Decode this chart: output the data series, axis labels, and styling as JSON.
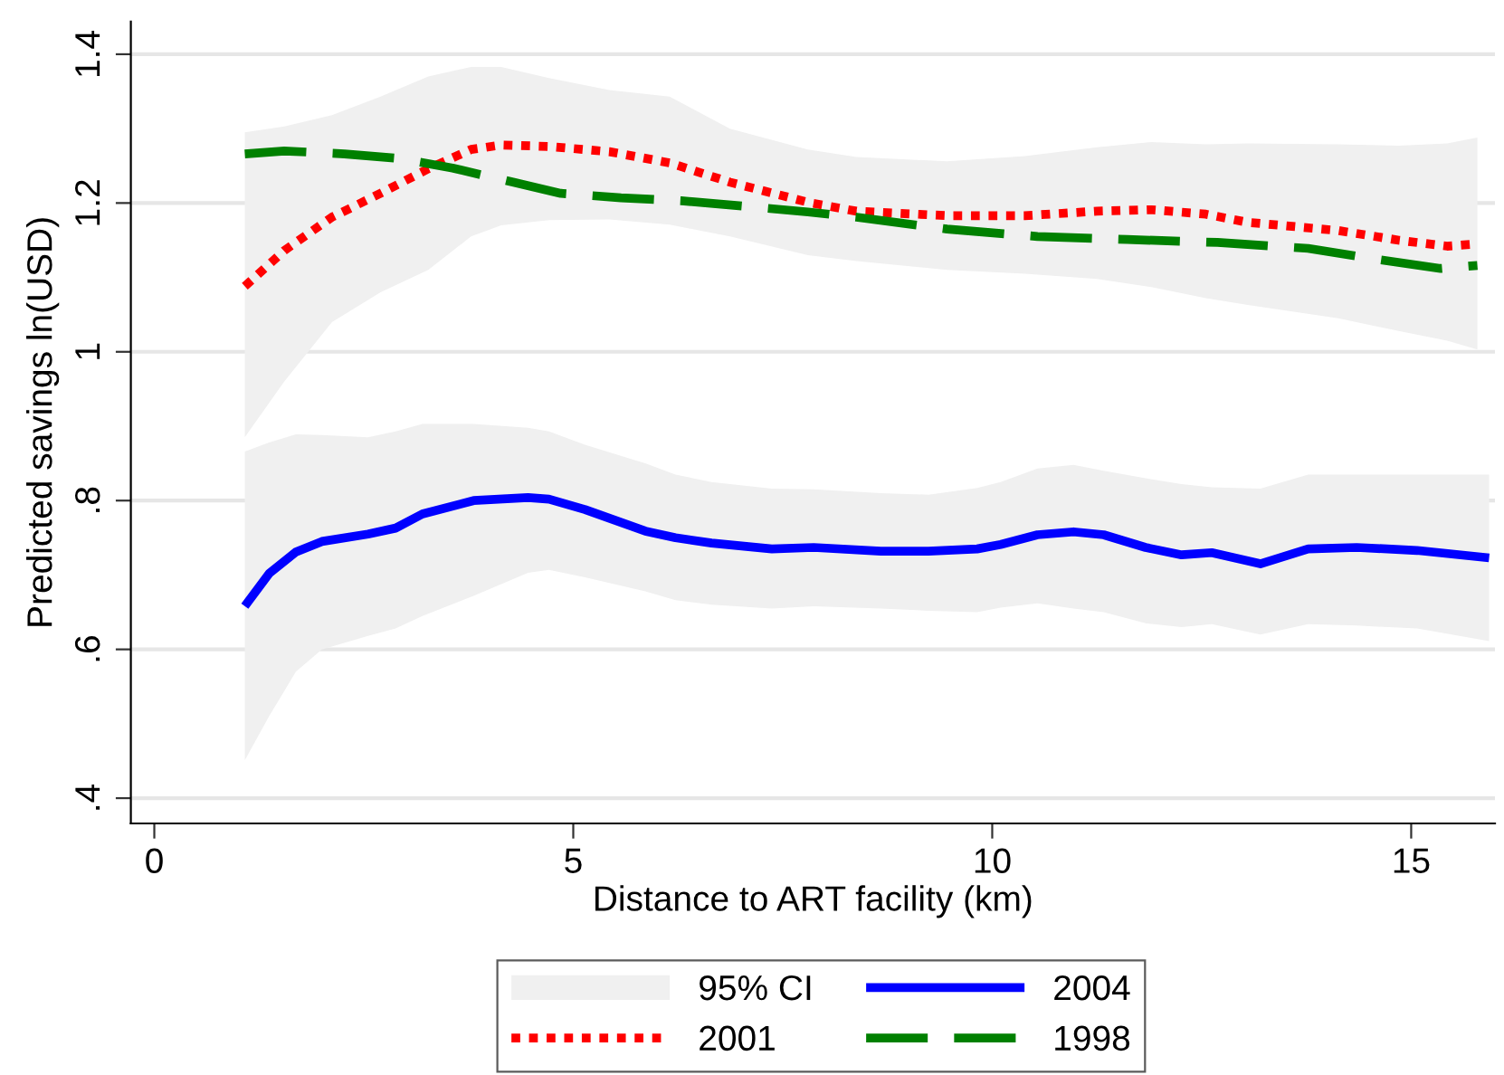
{
  "chart_data": {
    "type": "line",
    "xlabel": "Distance to ART facility (km)",
    "ylabel": "Predicted savings ln(USD)",
    "xlim": [
      -0.28,
      16.0
    ],
    "ylim": [
      0.366,
      1.444
    ],
    "xticks": [
      0,
      5,
      10,
      15
    ],
    "yticks": [
      {
        "value": 0.4,
        "label": ".4"
      },
      {
        "value": 0.6,
        "label": ".6"
      },
      {
        "value": 0.8,
        "label": ".8"
      },
      {
        "value": 1,
        "label": "1"
      },
      {
        "value": 1.2,
        "label": "1.2"
      },
      {
        "value": 1.4,
        "label": "1.4"
      }
    ],
    "grid": "y",
    "legend": "bottom",
    "marker": "none",
    "annotations": [
      "95% CI"
    ],
    "series": [
      {
        "name": "2004",
        "color": "#0000ff",
        "line_style": "solid",
        "x": [
          1.08,
          1.37,
          1.69,
          2,
          2.55,
          2.88,
          3.2,
          3.81,
          4.46,
          4.71,
          5.14,
          5.86,
          6.22,
          6.65,
          7.37,
          7.87,
          8.67,
          9.24,
          9.82,
          10.1,
          10.54,
          10.97,
          11.33,
          11.83,
          12.26,
          12.62,
          13.2,
          13.77,
          14.35,
          15.07,
          15.93
        ],
        "values": [
          0.658,
          0.702,
          0.731,
          0.745,
          0.755,
          0.763,
          0.782,
          0.8,
          0.804,
          0.802,
          0.788,
          0.759,
          0.75,
          0.743,
          0.735,
          0.737,
          0.732,
          0.732,
          0.735,
          0.741,
          0.754,
          0.758,
          0.754,
          0.737,
          0.727,
          0.73,
          0.715,
          0.735,
          0.737,
          0.733,
          0.723
        ],
        "lower": [
          0.451,
          0.51,
          0.57,
          0.6,
          0.618,
          0.628,
          0.645,
          0.672,
          0.703,
          0.707,
          0.697,
          0.678,
          0.666,
          0.66,
          0.655,
          0.658,
          0.655,
          0.652,
          0.65,
          0.656,
          0.662,
          0.655,
          0.65,
          0.635,
          0.63,
          0.634,
          0.62,
          0.634,
          0.632,
          0.628,
          0.611
        ],
        "upper": [
          0.866,
          0.878,
          0.889,
          0.888,
          0.885,
          0.893,
          0.903,
          0.903,
          0.898,
          0.893,
          0.875,
          0.85,
          0.835,
          0.825,
          0.816,
          0.815,
          0.81,
          0.808,
          0.817,
          0.825,
          0.843,
          0.848,
          0.84,
          0.83,
          0.822,
          0.818,
          0.816,
          0.835,
          0.835,
          0.835,
          0.835
        ]
      },
      {
        "name": "2001",
        "color": "#ff0000",
        "line_style": "dotted",
        "x": [
          1.08,
          1.55,
          2.12,
          2.7,
          3.27,
          3.78,
          4.14,
          4.71,
          5.43,
          6.15,
          6.87,
          7.8,
          8.38,
          9.46,
          10.39,
          11.25,
          11.9,
          12.55,
          13.05,
          14.13,
          14.85,
          15.43,
          15.79
        ],
        "values": [
          1.088,
          1.136,
          1.181,
          1.213,
          1.246,
          1.272,
          1.278,
          1.276,
          1.269,
          1.254,
          1.228,
          1.201,
          1.189,
          1.183,
          1.183,
          1.189,
          1.191,
          1.185,
          1.174,
          1.163,
          1.15,
          1.142,
          1.145
        ],
        "lower": [
          0.885,
          0.96,
          1.04,
          1.08,
          1.11,
          1.155,
          1.17,
          1.177,
          1.178,
          1.171,
          1.155,
          1.13,
          1.122,
          1.11,
          1.105,
          1.098,
          1.087,
          1.072,
          1.063,
          1.045,
          1.028,
          1.015,
          1.003
        ],
        "upper": [
          1.295,
          1.303,
          1.318,
          1.343,
          1.37,
          1.383,
          1.383,
          1.368,
          1.352,
          1.343,
          1.3,
          1.272,
          1.262,
          1.256,
          1.263,
          1.275,
          1.282,
          1.279,
          1.28,
          1.279,
          1.277,
          1.28,
          1.288
        ]
      },
      {
        "name": "1998",
        "color": "#008000",
        "line_style": "dashed",
        "x": [
          1.08,
          1.55,
          2.27,
          2.91,
          3.56,
          4.28,
          4.85,
          5.57,
          6.29,
          7.01,
          7.8,
          8.38,
          9.46,
          10.54,
          11.61,
          12.69,
          13.77,
          14.49,
          15.35,
          15.79
        ],
        "values": [
          1.266,
          1.27,
          1.266,
          1.26,
          1.247,
          1.228,
          1.213,
          1.207,
          1.203,
          1.196,
          1.188,
          1.181,
          1.165,
          1.155,
          1.151,
          1.147,
          1.139,
          1.126,
          1.112,
          1.116
        ]
      }
    ]
  }
}
